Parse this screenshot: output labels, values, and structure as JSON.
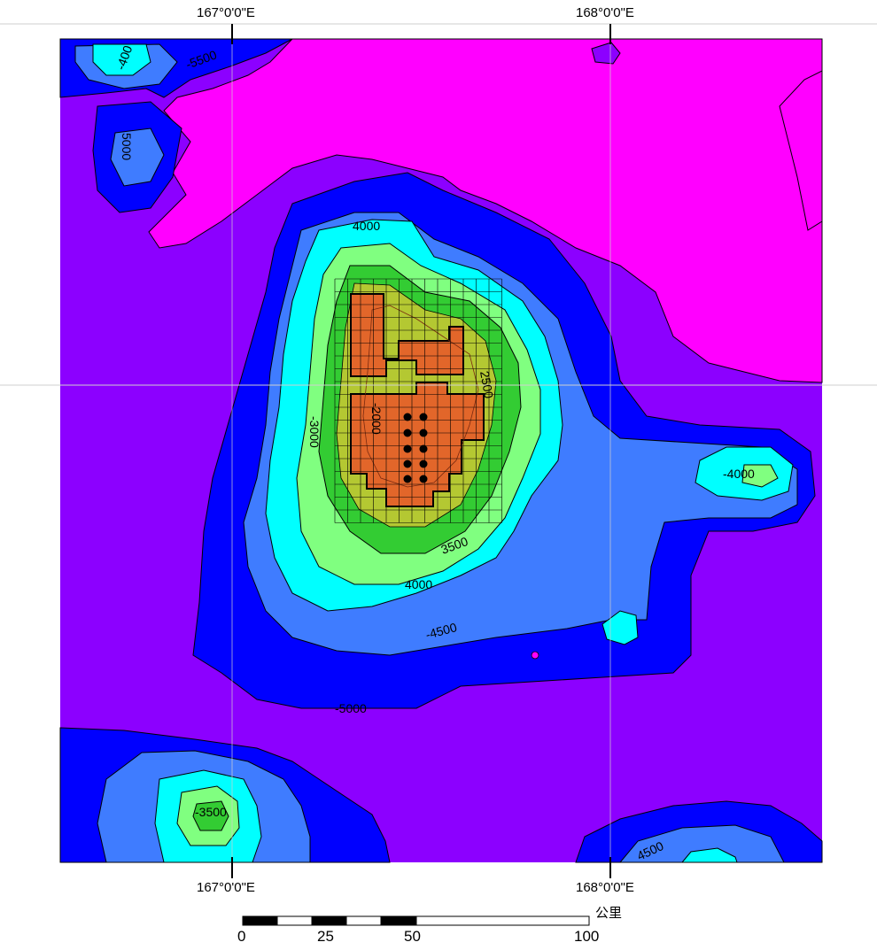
{
  "graticule": {
    "top_left": "167°0'0\"E",
    "top_right": "168°0'0\"E",
    "bottom_left": "167°0'0\"E",
    "bottom_right": "168°0'0\"E"
  },
  "scale_bar": {
    "ticks": [
      "0",
      "25",
      "50",
      "100"
    ],
    "unit": "公里"
  },
  "contour_labels": {
    "nw_4000": "-400",
    "nw_5500": "-5500",
    "w_5000": "5000",
    "seamount_4000": "4000",
    "seamount_3000": "-3000",
    "seamount_2500": "2500",
    "seamount_2000": "-2000",
    "seamount_3500": "3500",
    "seamount_4000b": "4000",
    "seamount_4500": "-4500",
    "south_5000": "-5000",
    "east_4000": "-4000",
    "sw_3500": "-3500",
    "se_4500": "4500"
  },
  "colors": {
    "deep_magenta": "#ff00ff",
    "abyssal_violet": "#8c00ff",
    "deep_blue": "#0000ff",
    "mid_blue": "#3f7cff",
    "cyan": "#00ffff",
    "light_green": "#80ff80",
    "green": "#33cc33",
    "olive": "#b4c832",
    "orange": "#e2662a"
  }
}
